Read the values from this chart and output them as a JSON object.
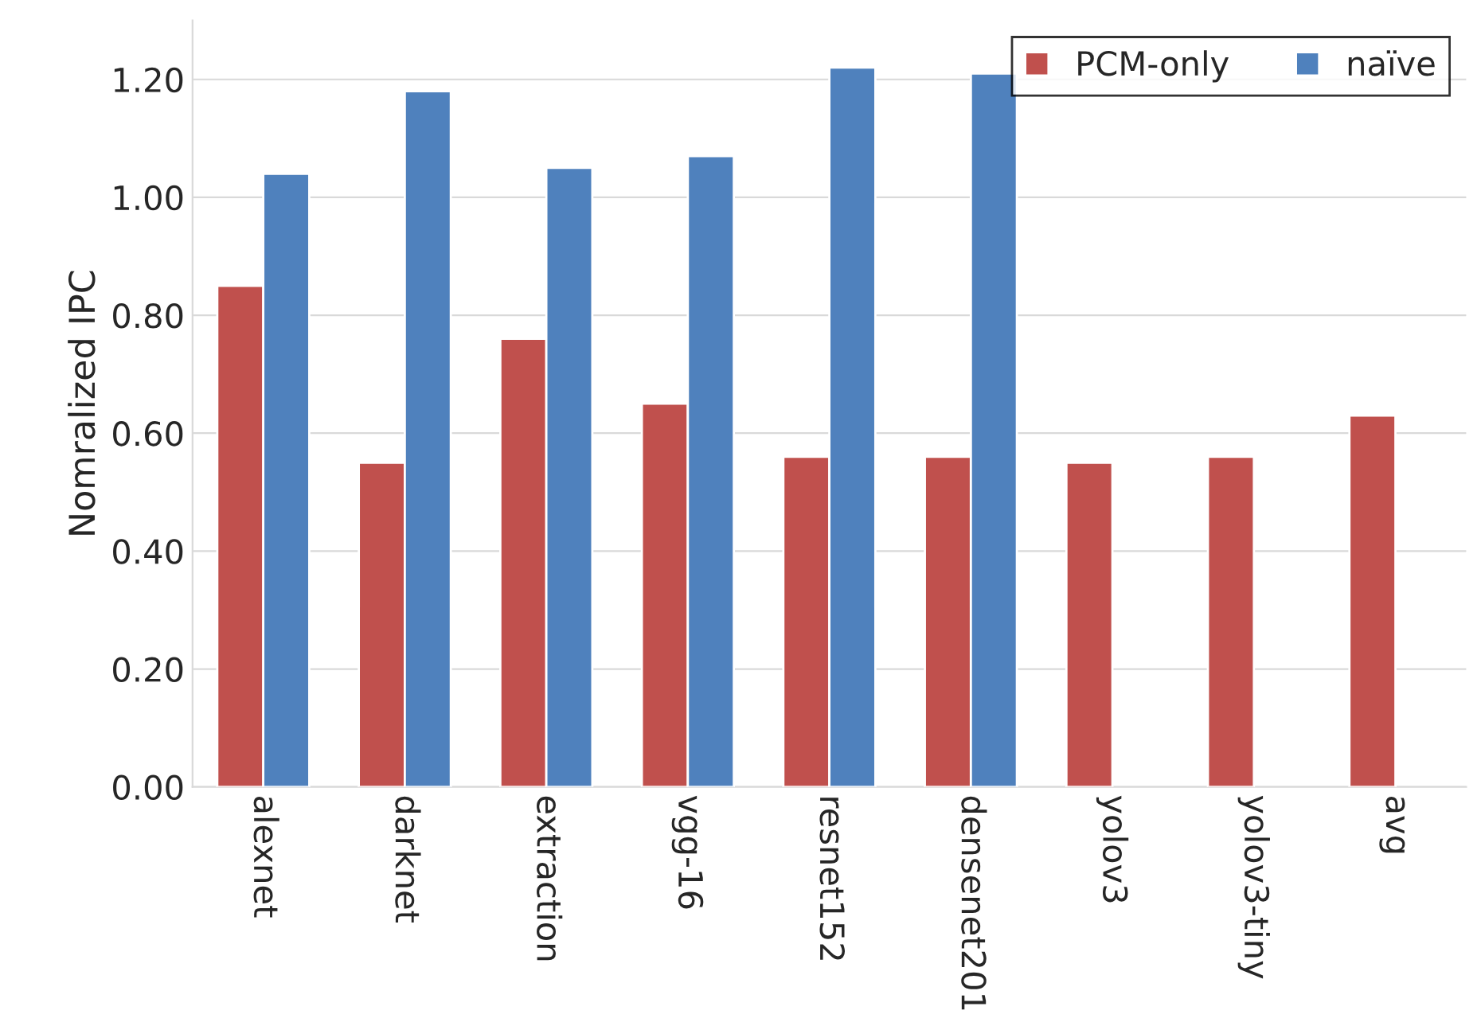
{
  "chart_data": {
    "type": "bar",
    "ylabel": "Nomralized IPC",
    "categories": [
      "alexnet",
      "darknet",
      "extraction",
      "vgg-16",
      "resnet152",
      "densenet201",
      "yolov3",
      "yolov3-tiny",
      "avg"
    ],
    "series": [
      {
        "name": "PCM-only",
        "color": "#c0504d",
        "values": [
          0.85,
          0.55,
          0.76,
          0.65,
          0.56,
          0.56,
          0.55,
          0.56,
          0.63
        ]
      },
      {
        "name": "naïve",
        "color": "#4f81bd",
        "values": [
          1.04,
          1.18,
          1.05,
          1.07,
          1.22,
          1.21,
          null,
          null,
          null
        ]
      }
    ],
    "ylim": [
      0,
      1.3
    ],
    "yticks": [
      {
        "value": 0,
        "label": "0.00"
      },
      {
        "value": 0.2,
        "label": "0.20"
      },
      {
        "value": 0.4,
        "label": "0.40"
      },
      {
        "value": 0.6,
        "label": "0.60"
      },
      {
        "value": 0.8,
        "label": "0.80"
      },
      {
        "value": 1.0,
        "label": "1.00"
      },
      {
        "value": 1.2,
        "label": "1.20"
      }
    ],
    "grid": "y",
    "legend": "top right"
  }
}
